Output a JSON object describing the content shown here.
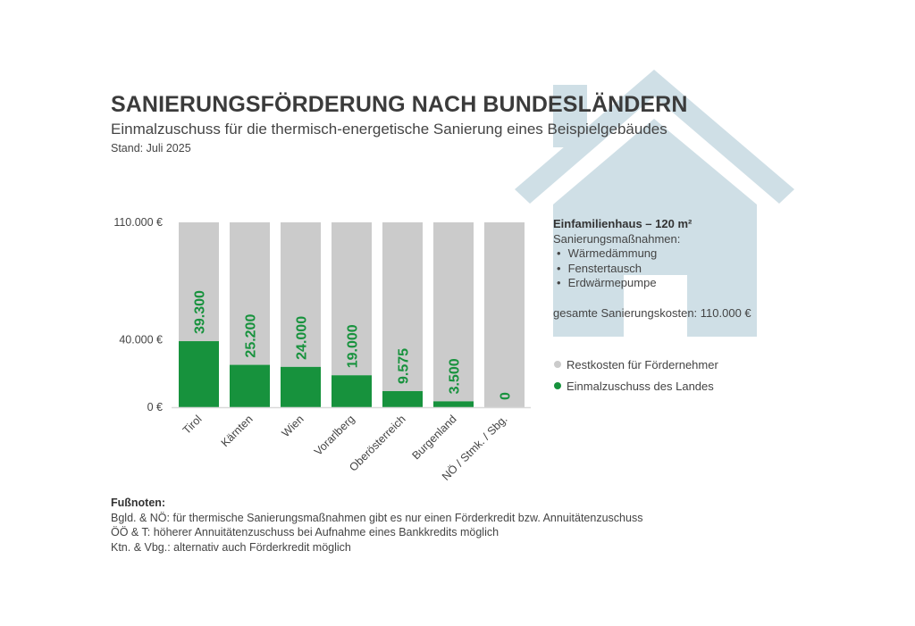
{
  "header": {
    "title": "SANIERUNGSFÖRDERUNG NACH BUNDESLÄNDERN",
    "subtitle": "Einmalzuschuss für die thermisch-energetische Sanierung eines Beispielgebäudes",
    "stand": "Stand: Juli 2025"
  },
  "colors": {
    "subsidy": "#17923d",
    "remaining": "#cbcbcb",
    "house": "#cfdfe6",
    "label": "#17923d",
    "axis_text": "#444444"
  },
  "info_box": {
    "heading": "Einfamilienhaus – 120 m²",
    "measures_label": "Sanierungsmaßnahmen:",
    "measures": [
      "Wärmedämmung",
      "Fenstertausch",
      "Erdwärmepumpe"
    ],
    "total_cost": "gesamte Sanierungskosten: 110.000 €"
  },
  "legend": [
    {
      "label": "Restkosten für Fördernehmer",
      "color": "#cbcbcb"
    },
    {
      "label": "Einmalzuschuss des Landes",
      "color": "#17923d"
    }
  ],
  "footnotes": {
    "title": "Fußnoten:",
    "lines": [
      "Bgld. & NÖ: für thermische Sanierungsmaßnahmen gibt es nur einen Förderkredit bzw. Annuitätenzuschuss",
      "ÖÖ & T: höherer Annuitätenzuschuss bei Aufnahme eines Bankkredits möglich",
      "Ktn. & Vbg.: alternativ auch Förderkredit möglich"
    ]
  },
  "chart_data": {
    "type": "bar",
    "stacked": true,
    "title": "SANIERUNGSFÖRDERUNG NACH BUNDESLÄNDERN",
    "subtitle": "Einmalzuschuss für die thermisch-energetische Sanierung eines Beispielgebäudes",
    "xlabel": "",
    "ylabel": "",
    "ylim": [
      0,
      110000
    ],
    "yticks": [
      0,
      40000,
      110000
    ],
    "ytick_labels": [
      "0 €",
      "40.000 €",
      "110.000 €"
    ],
    "categories": [
      "Tirol",
      "Kärnten",
      "Wien",
      "Vorarlberg",
      "Oberösterreich",
      "Burgenland",
      "NÖ / Stmk. / Sbg."
    ],
    "series": [
      {
        "name": "Einmalzuschuss des Landes",
        "values": [
          39300,
          25200,
          24000,
          19000,
          9575,
          3500,
          0
        ]
      },
      {
        "name": "Restkosten für Fördernehmer",
        "values": [
          70700,
          84800,
          86000,
          91000,
          100425,
          106500,
          110000
        ]
      }
    ],
    "data_labels": [
      "39.300",
      "25.200",
      "24.000",
      "19.000",
      "9.575",
      "3.500",
      "0"
    ],
    "legend_position": "right",
    "grid": false
  }
}
